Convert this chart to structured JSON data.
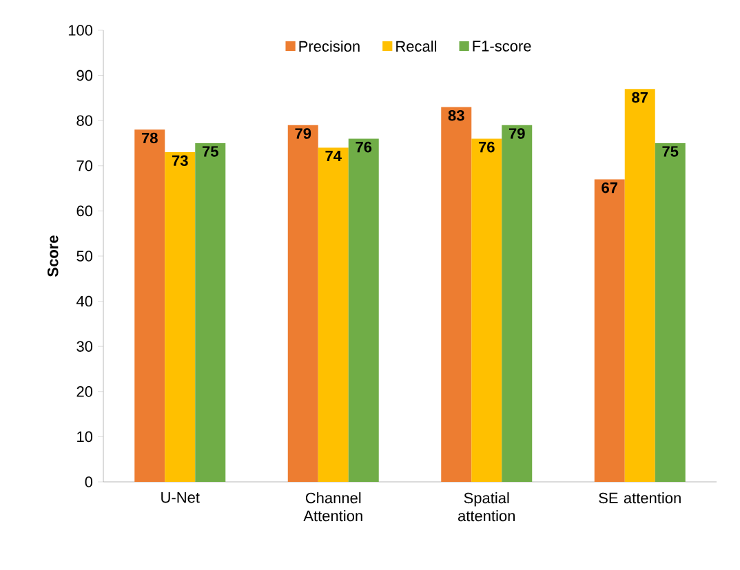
{
  "chart_data": {
    "type": "bar",
    "ylabel": "Score",
    "categories": [
      "U-Net",
      "Channel Attention",
      "Spatial attention",
      "SE attention"
    ],
    "series": [
      {
        "name": "Precision",
        "color": "#ed7d31",
        "values": [
          78,
          79,
          83,
          67
        ]
      },
      {
        "name": "Recall",
        "color": "#ffc000",
        "values": [
          73,
          74,
          76,
          87
        ]
      },
      {
        "name": "F1-score",
        "color": "#70ad47",
        "values": [
          75,
          76,
          79,
          75
        ]
      }
    ],
    "ylim": [
      0,
      100
    ],
    "yticks": [
      0,
      10,
      20,
      30,
      40,
      50,
      60,
      70,
      80,
      90,
      100
    ],
    "data_labels": true,
    "legend": "top",
    "grid": false
  }
}
